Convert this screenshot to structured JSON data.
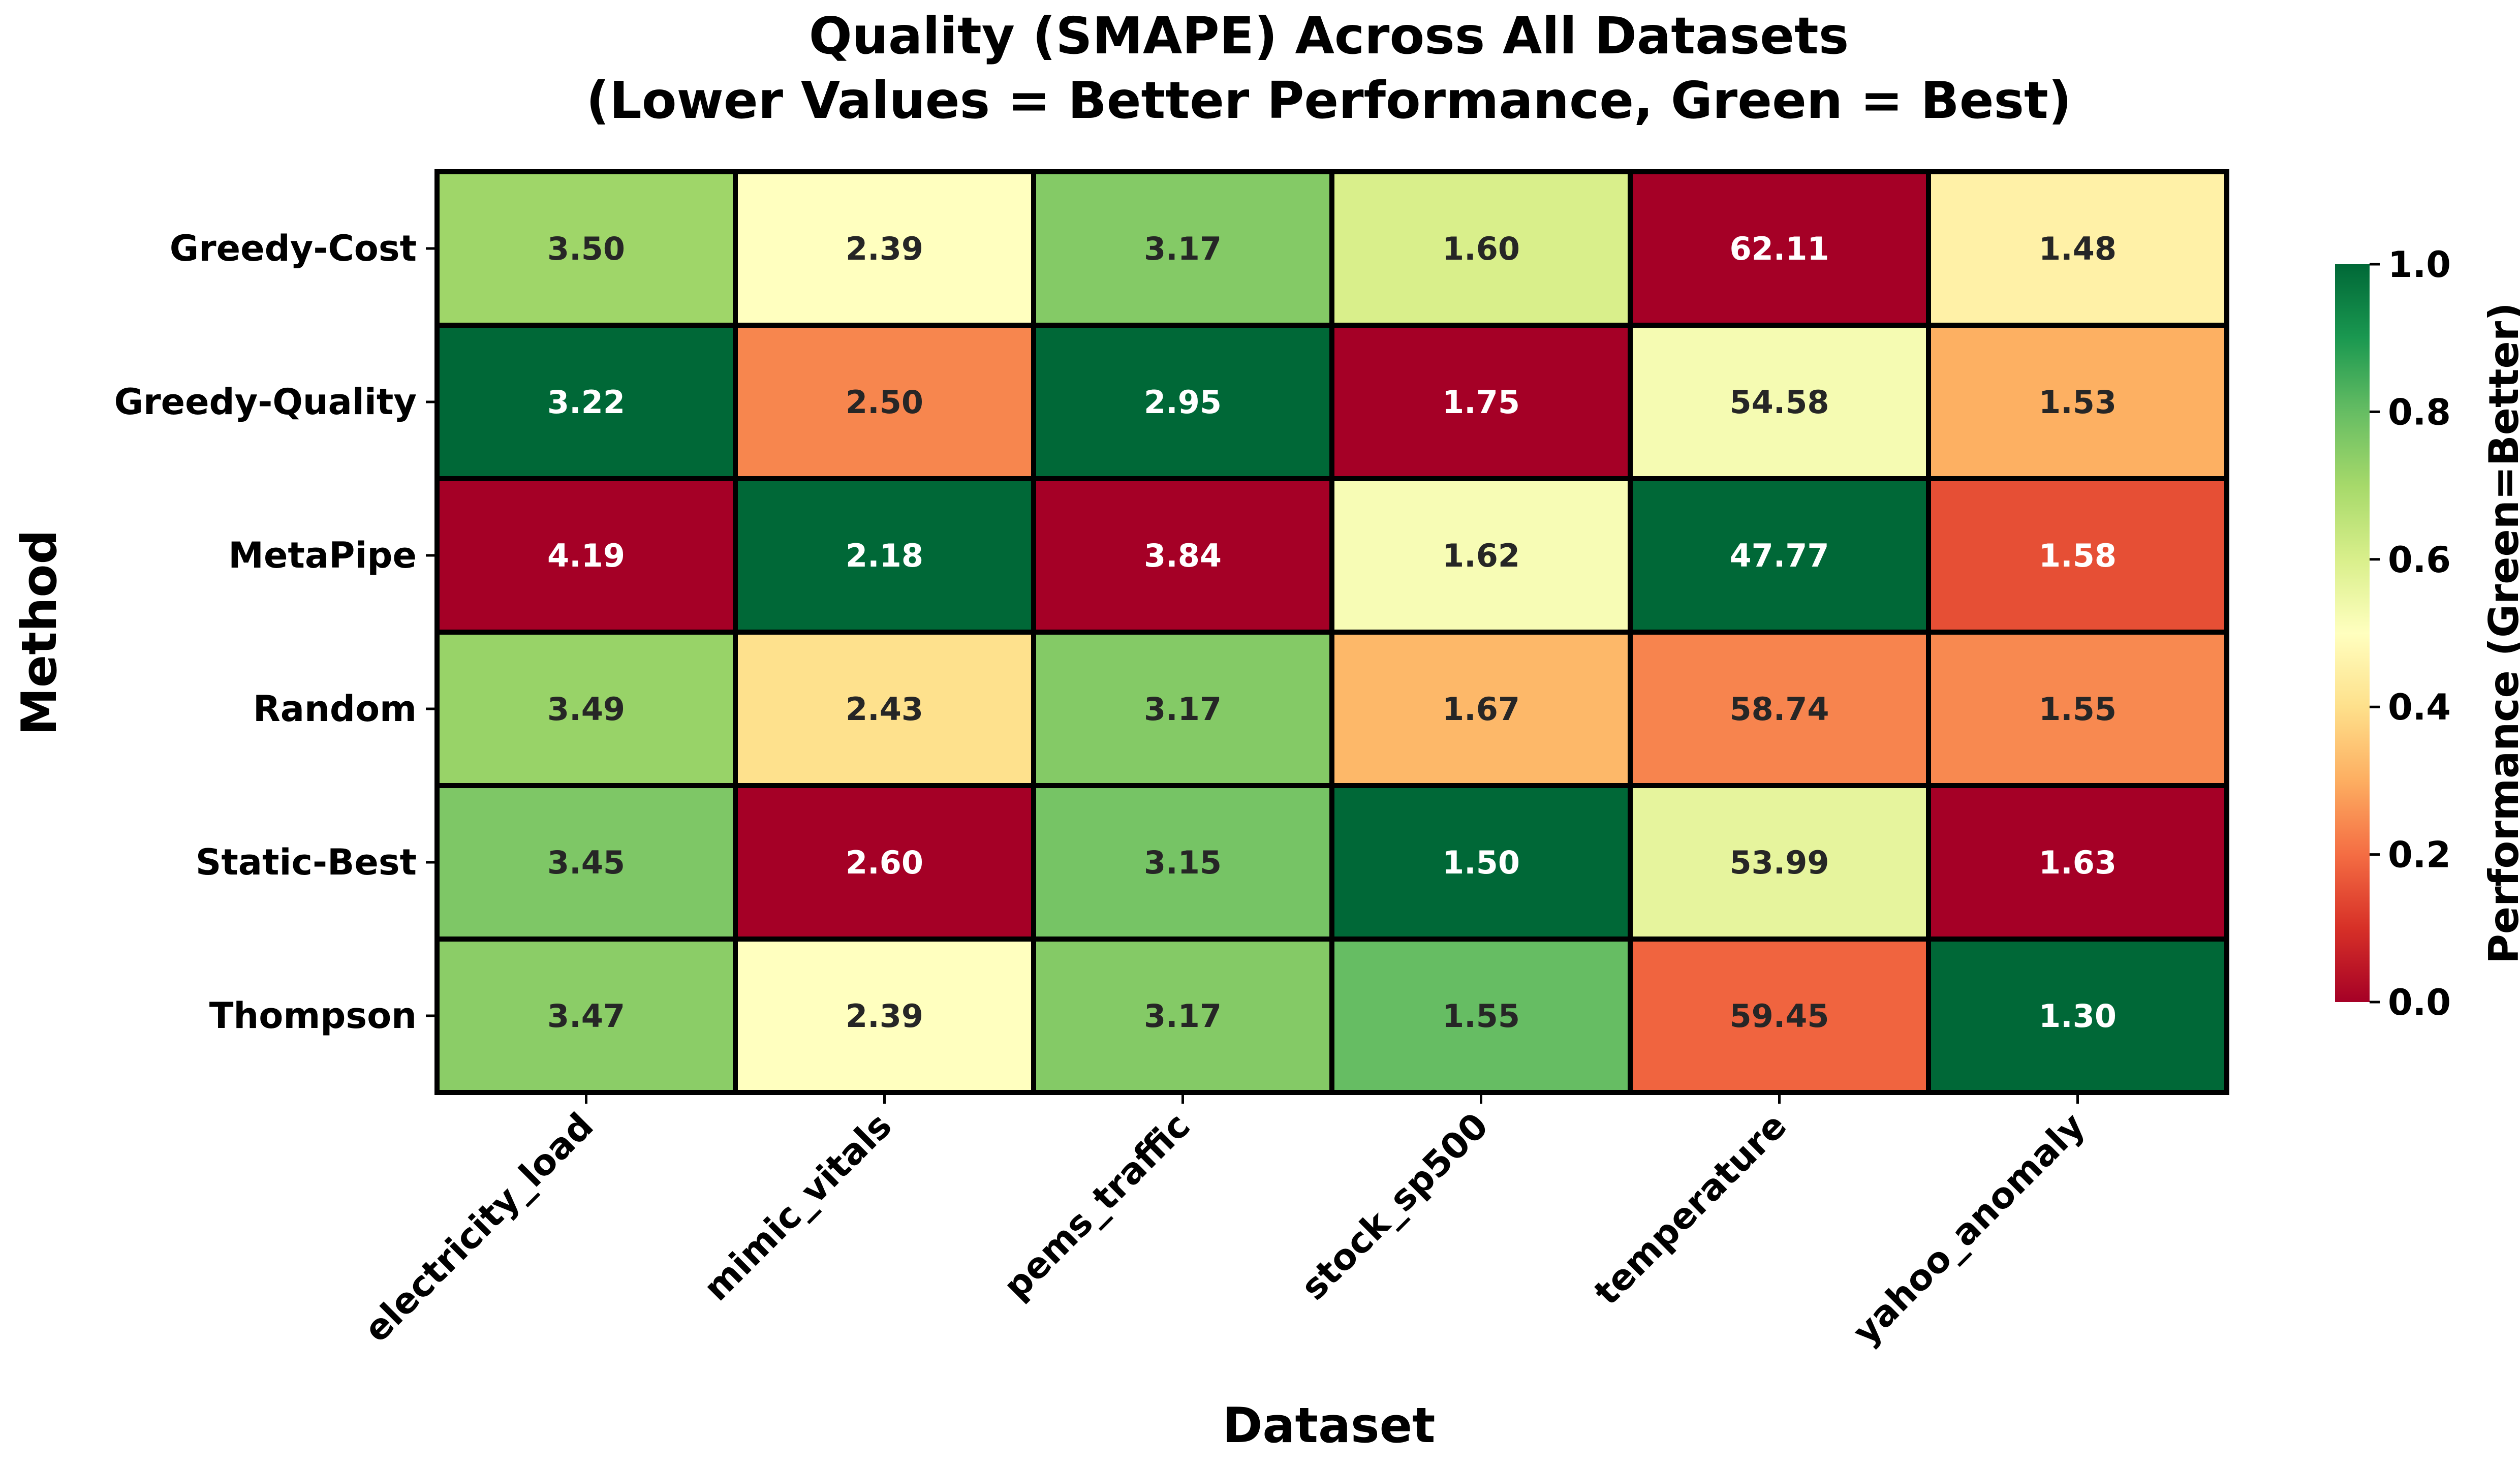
{
  "chart_data": {
    "type": "heatmap",
    "title": "Quality (SMAPE) Across All Datasets",
    "subtitle": "(Lower Values = Better Performance, Green = Best)",
    "xlabel": "Dataset",
    "ylabel": "Method",
    "columns": [
      "electricity_load",
      "mimic_vitals",
      "pems_traffic",
      "stock_sp500",
      "temperature",
      "yahoo_anomaly"
    ],
    "rows": [
      "Greedy-Cost",
      "Greedy-Quality",
      "MetaPipe",
      "Random",
      "Static-Best",
      "Thompson"
    ],
    "values": [
      [
        3.5,
        2.39,
        3.17,
        1.6,
        62.11,
        1.48
      ],
      [
        3.22,
        2.5,
        2.95,
        1.75,
        54.58,
        1.53
      ],
      [
        4.19,
        2.18,
        3.84,
        1.62,
        47.77,
        1.58
      ],
      [
        3.49,
        2.43,
        3.17,
        1.67,
        58.74,
        1.55
      ],
      [
        3.45,
        2.6,
        3.15,
        1.5,
        53.99,
        1.63
      ],
      [
        3.47,
        2.39,
        3.17,
        1.55,
        59.45,
        1.3
      ]
    ],
    "value_labels": [
      [
        "3.50",
        "2.39",
        "3.17",
        "1.60",
        "62.11",
        "1.48"
      ],
      [
        "3.22",
        "2.50",
        "2.95",
        "1.75",
        "54.58",
        "1.53"
      ],
      [
        "4.19",
        "2.18",
        "3.84",
        "1.62",
        "47.77",
        "1.58"
      ],
      [
        "3.49",
        "2.43",
        "3.17",
        "1.67",
        "58.74",
        "1.55"
      ],
      [
        "3.45",
        "2.60",
        "3.15",
        "1.50",
        "53.99",
        "1.63"
      ],
      [
        "3.47",
        "2.39",
        "3.17",
        "1.55",
        "59.45",
        "1.30"
      ]
    ],
    "color_normalization": "per-column min-max, inverted (lowest SMAPE = 1.0)",
    "colormap": "RdYlGn",
    "colorbar": {
      "label": "Performance (Green=Better)",
      "range": [
        0.0,
        1.0
      ],
      "ticks": [
        "0.0",
        "0.2",
        "0.4",
        "0.6",
        "0.8",
        "1.0"
      ]
    },
    "grid": false,
    "cell_border_color": "#000000"
  }
}
